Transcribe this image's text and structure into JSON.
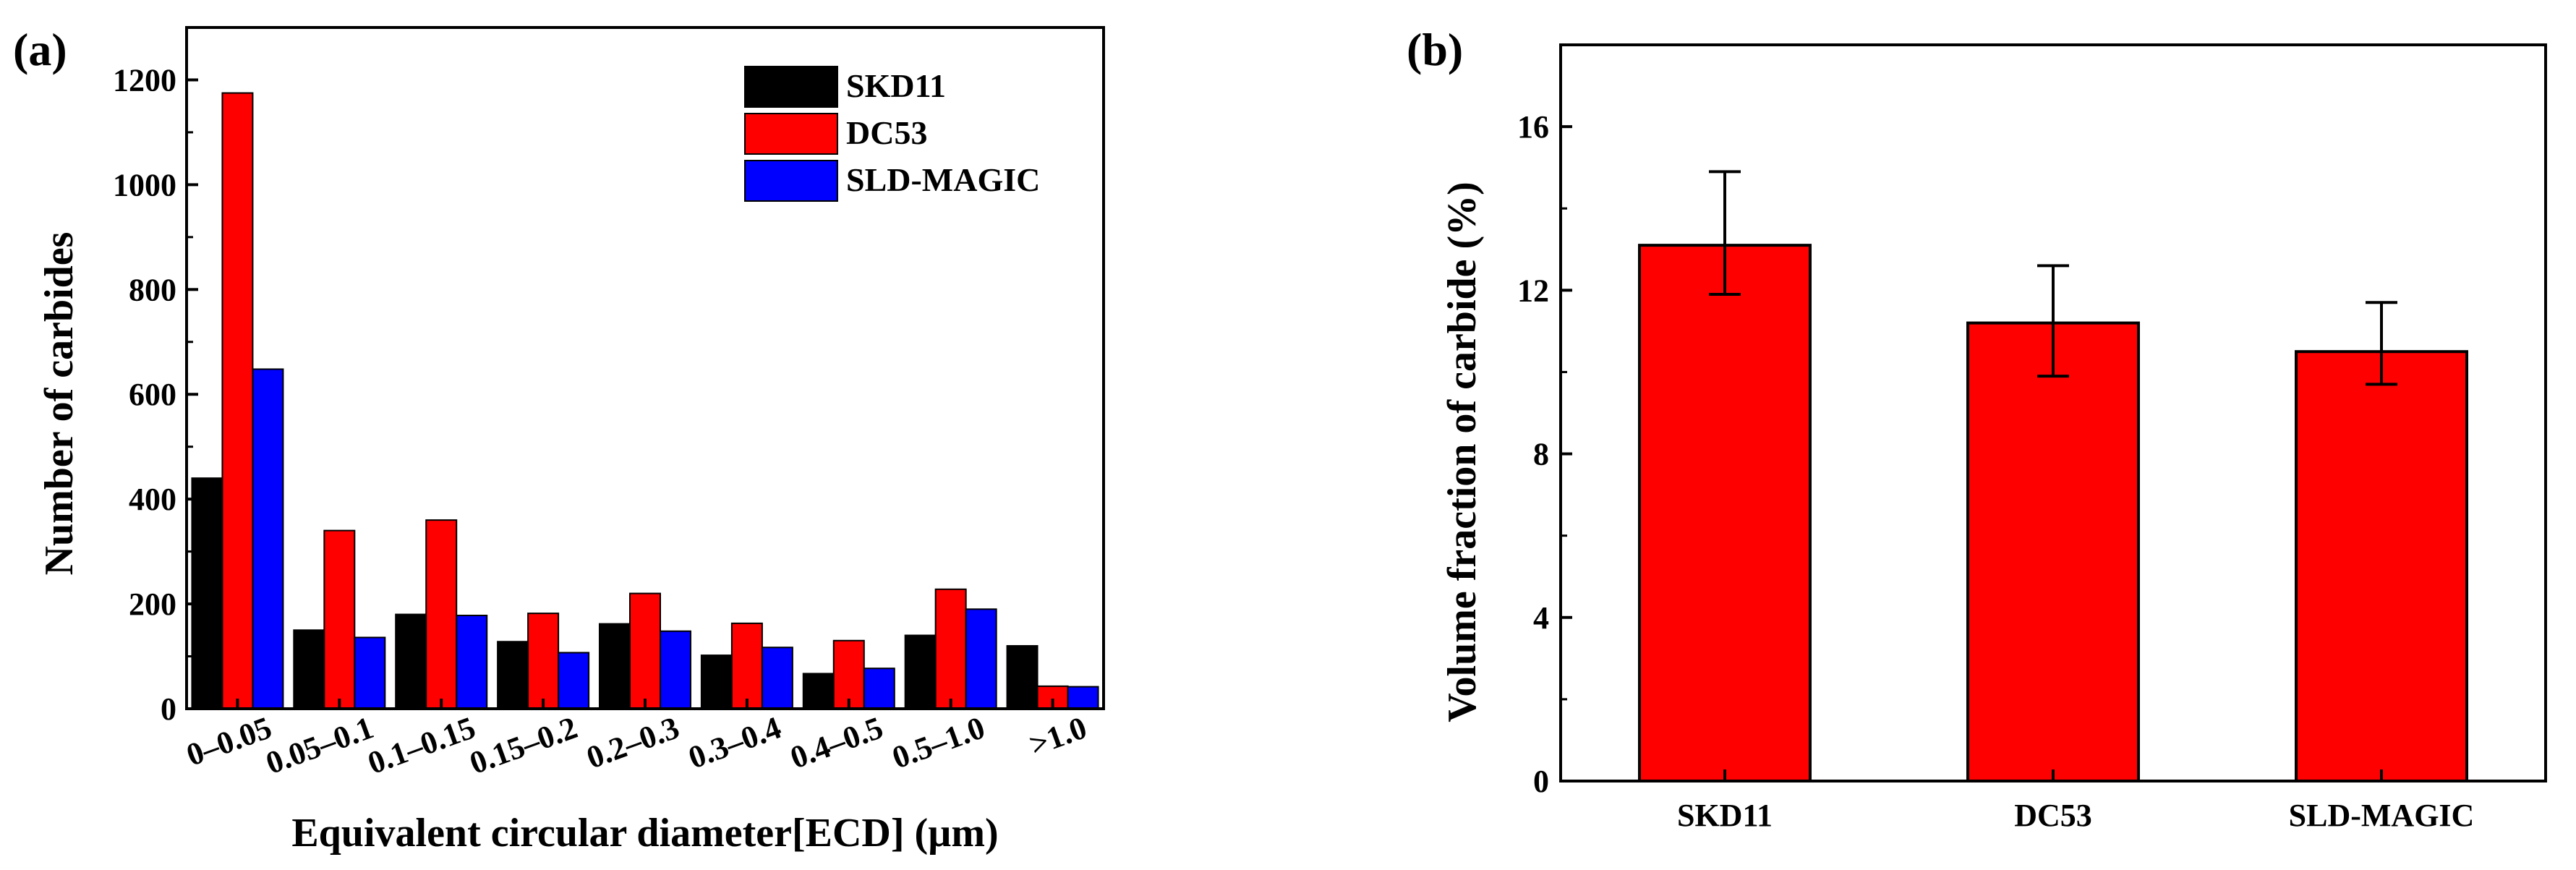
{
  "chart_data": [
    {
      "type": "bar",
      "panel_label": "(a)",
      "title": "",
      "xlabel": "Equivalent circular diameter[ECD] (µm)",
      "ylabel": "Number of carbides",
      "ylim": [
        0,
        1300
      ],
      "yticks": [
        "0",
        "200",
        "400",
        "600",
        "800",
        "1000",
        "1200"
      ],
      "categories": [
        "0–0.05",
        "0.05–0.1",
        "0.1–0.15",
        "0.15–0.2",
        "0.2–0.3",
        "0.3–0.4",
        "0.4–0.5",
        "0.5–1.0",
        ">1.0"
      ],
      "series": [
        {
          "name": "SKD11",
          "color": "#000000",
          "values": [
            440,
            150,
            180,
            128,
            162,
            102,
            67,
            140,
            120
          ]
        },
        {
          "name": "DC53",
          "color": "#ff0000",
          "values": [
            1175,
            340,
            360,
            182,
            220,
            163,
            130,
            228,
            43
          ]
        },
        {
          "name": "SLD-MAGIC",
          "color": "#0000ff",
          "values": [
            648,
            136,
            178,
            107,
            148,
            117,
            77,
            190,
            42
          ]
        }
      ],
      "legend_position": "top-right"
    },
    {
      "type": "bar",
      "panel_label": "(b)",
      "title": "",
      "xlabel": "",
      "ylabel": "Volume fraction of carbide (%)",
      "ylim": [
        0,
        18
      ],
      "yticks": [
        "0",
        "4",
        "8",
        "12",
        "16"
      ],
      "categories": [
        "SKD11",
        "DC53",
        "SLD-MAGIC"
      ],
      "values": [
        13.1,
        11.2,
        10.5
      ],
      "error_low": [
        11.9,
        9.9,
        9.7
      ],
      "error_high": [
        14.9,
        12.6,
        11.7
      ],
      "color": "#ff0000"
    }
  ]
}
